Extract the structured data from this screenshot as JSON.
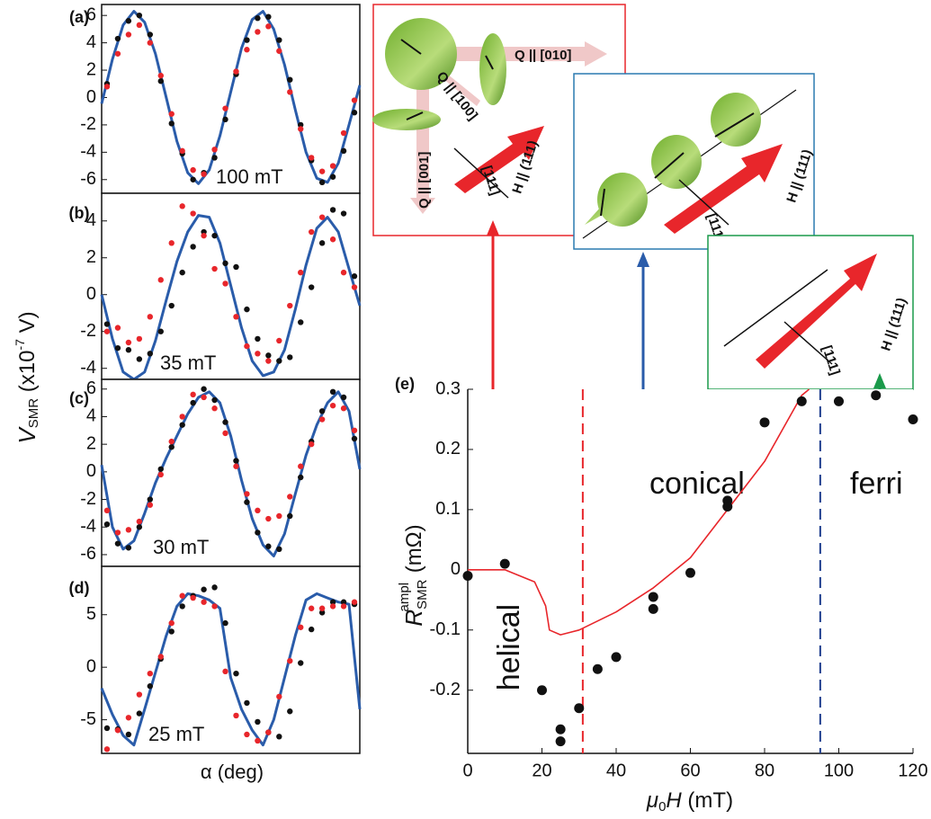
{
  "panels_abcd": {
    "y_label": [
      "V",
      "SMR",
      " (x10",
      "-7",
      " V)"
    ],
    "x_label": "α (deg)"
  },
  "panel_e_labels": {
    "y_label": [
      "R",
      "SMR",
      "ampl",
      " (mΩ)"
    ],
    "x_label": [
      "μ",
      "0",
      "H",
      " (mT)"
    ]
  },
  "insets": [
    {
      "texts": [
        "Q || [010]",
        "Q || [100]",
        "Q || [001]",
        "H || (111)",
        "[111]"
      ]
    },
    {
      "texts": [
        "H || (111)",
        "[111]"
      ]
    },
    {
      "texts": [
        "H || (111)",
        "[111]"
      ]
    }
  ],
  "chart_data": [
    {
      "type": "line",
      "label": "(a)",
      "annotation": "100 mT",
      "xlim": [
        0,
        360
      ],
      "ylim": [
        -7,
        6.8
      ],
      "yticks": [
        -6,
        -4,
        -2,
        0,
        2,
        4,
        6
      ],
      "series": [
        {
          "style": "line",
          "color": "#2a5caa",
          "x": [
            0,
            15,
            30,
            45,
            60,
            75,
            90,
            105,
            120,
            135,
            150,
            165,
            180,
            195,
            210,
            225,
            240,
            255,
            270,
            285,
            300,
            315,
            330,
            345,
            360
          ],
          "values": [
            -0.45,
            2.8,
            5.3,
            6.3,
            5.5,
            3.2,
            0,
            -3.2,
            -5.5,
            -6.3,
            -5.3,
            -2.8,
            0.4,
            3.6,
            5.7,
            6.3,
            5.0,
            2.4,
            -0.9,
            -4.0,
            -5.9,
            -6.2,
            -4.8,
            -2.0,
            0.9
          ]
        },
        {
          "style": "dots",
          "color": "#111111",
          "x": [
            7.5,
            22.5,
            37.5,
            52.5,
            67.5,
            82.5,
            97.5,
            112.5,
            127.5,
            142.5,
            157.5,
            172.5,
            187.5,
            202.5,
            217.5,
            232.5,
            247.5,
            262.5,
            277.5,
            292.5,
            307.5,
            322.5,
            337.5,
            352.5
          ],
          "values": [
            1.0,
            4.3,
            5.6,
            6.0,
            4.6,
            1.2,
            -1.9,
            -4.1,
            -6.0,
            -5.5,
            -4.4,
            -1.6,
            1.7,
            4.2,
            5.8,
            5.9,
            4.2,
            1.3,
            -2.0,
            -4.6,
            -6.2,
            -5.8,
            -3.9,
            -1.1
          ]
        },
        {
          "style": "dots",
          "color": "#e8262b",
          "x": [
            7.5,
            22.5,
            37.5,
            52.5,
            67.5,
            82.5,
            97.5,
            112.5,
            127.5,
            142.5,
            157.5,
            172.5,
            187.5,
            202.5,
            217.5,
            232.5,
            247.5,
            262.5,
            277.5,
            292.5,
            307.5,
            322.5,
            337.5,
            352.5
          ],
          "values": [
            0.8,
            3.2,
            4.6,
            5.3,
            4.0,
            1.6,
            -1.2,
            -3.9,
            -5.3,
            -5.6,
            -3.8,
            -0.8,
            1.9,
            3.5,
            4.8,
            5.2,
            3.4,
            0.4,
            -2.3,
            -4.4,
            -5.4,
            -5.0,
            -2.6,
            -0.2
          ]
        }
      ]
    },
    {
      "type": "line",
      "label": "(b)",
      "annotation": "35 mT",
      "xlim": [
        0,
        360
      ],
      "ylim": [
        -4.6,
        5.5
      ],
      "yticks": [
        -4,
        -2,
        0,
        2,
        4
      ],
      "series": [
        {
          "style": "line",
          "color": "#2a5caa",
          "x": [
            0,
            15,
            30,
            45,
            60,
            75,
            90,
            105,
            120,
            135,
            150,
            165,
            180,
            195,
            210,
            225,
            240,
            255,
            270,
            285,
            300,
            315,
            330,
            345,
            360
          ],
          "values": [
            0,
            -2.4,
            -4.2,
            -4.6,
            -4.2,
            -2.5,
            -0.3,
            1.8,
            3.4,
            4.3,
            4.2,
            2.8,
            0.5,
            -1.8,
            -3.6,
            -4.4,
            -4.2,
            -3.0,
            -0.8,
            1.6,
            3.6,
            4.2,
            3.4,
            1.4,
            -0.6
          ]
        },
        {
          "style": "dots",
          "color": "#111111",
          "x": [
            7.5,
            22.5,
            37.5,
            52.5,
            67.5,
            82.5,
            97.5,
            112.5,
            127.5,
            142.5,
            157.5,
            172.5,
            187.5,
            202.5,
            217.5,
            232.5,
            247.5,
            262.5,
            277.5,
            292.5,
            307.5,
            322.5,
            337.5,
            352.5
          ],
          "values": [
            -1.6,
            -2.9,
            -3.0,
            -3.5,
            -3.2,
            -2.0,
            -0.6,
            1.2,
            2.6,
            3.4,
            3.2,
            1.7,
            1.5,
            -0.8,
            -2.4,
            -3.3,
            -3.6,
            -3.4,
            -1.5,
            0.4,
            2.8,
            4.6,
            4.4,
            1.0
          ]
        },
        {
          "style": "dots",
          "color": "#e8262b",
          "x": [
            7.5,
            22.5,
            37.5,
            52.5,
            67.5,
            82.5,
            97.5,
            112.5,
            127.5,
            142.5,
            157.5,
            172.5,
            187.5,
            202.5,
            217.5,
            232.5,
            247.5,
            262.5,
            277.5,
            292.5,
            307.5,
            322.5,
            337.5,
            352.5
          ],
          "values": [
            -2.0,
            -1.8,
            -2.6,
            -2.4,
            -1.2,
            0.8,
            2.8,
            4.8,
            4.4,
            3.2,
            1.4,
            0.6,
            -1.2,
            -2.8,
            -3.2,
            -3.6,
            -2.5,
            -0.6,
            1.2,
            3.4,
            4.2,
            3.0,
            1.2,
            0.4
          ]
        }
      ]
    },
    {
      "type": "line",
      "label": "(c)",
      "annotation": "30 mT",
      "xlim": [
        0,
        360
      ],
      "ylim": [
        -6.85,
        6.7
      ],
      "yticks": [
        -6,
        -4,
        -2,
        0,
        2,
        4,
        6
      ],
      "series": [
        {
          "style": "line",
          "color": "#2a5caa",
          "x": [
            0,
            15,
            30,
            45,
            60,
            75,
            90,
            105,
            120,
            135,
            150,
            165,
            180,
            195,
            210,
            225,
            240,
            255,
            270,
            285,
            300,
            315,
            330,
            345,
            360
          ],
          "values": [
            0.5,
            -4.0,
            -5.6,
            -5.0,
            -3.0,
            -0.8,
            1.0,
            2.6,
            4.2,
            5.4,
            5.8,
            5.0,
            2.6,
            -0.6,
            -3.4,
            -5.3,
            -6.1,
            -4.5,
            -1.6,
            1.2,
            3.4,
            5.0,
            5.8,
            4.4,
            0.2
          ]
        },
        {
          "style": "dots",
          "color": "#111111",
          "x": [
            7.5,
            22.5,
            37.5,
            52.5,
            67.5,
            82.5,
            97.5,
            112.5,
            127.5,
            142.5,
            157.5,
            172.5,
            187.5,
            202.5,
            217.5,
            232.5,
            247.5,
            262.5,
            277.5,
            292.5,
            307.5,
            322.5,
            337.5,
            352.5
          ],
          "values": [
            -3.8,
            -5.2,
            -5.5,
            -4.0,
            -2.0,
            0.2,
            1.8,
            3.4,
            5.0,
            6.0,
            5.2,
            3.6,
            0.8,
            -2.2,
            -4.4,
            -5.4,
            -5.6,
            -3.2,
            -0.4,
            2.2,
            4.4,
            5.8,
            5.4,
            2.4
          ]
        },
        {
          "style": "dots",
          "color": "#e8262b",
          "x": [
            7.5,
            22.5,
            37.5,
            52.5,
            67.5,
            82.5,
            97.5,
            112.5,
            127.5,
            142.5,
            157.5,
            172.5,
            187.5,
            202.5,
            217.5,
            232.5,
            247.5,
            262.5,
            277.5,
            292.5,
            307.5,
            322.5,
            337.5,
            352.5
          ],
          "values": [
            -2.8,
            -4.4,
            -4.2,
            -3.6,
            -2.4,
            -0.2,
            2.2,
            4.0,
            5.6,
            5.4,
            4.6,
            2.8,
            0.4,
            -1.6,
            -2.8,
            -3.4,
            -3.2,
            -1.8,
            0.4,
            2.0,
            3.8,
            4.8,
            4.6,
            3.0
          ]
        }
      ]
    },
    {
      "type": "line",
      "label": "(d)",
      "annotation": "25 mT",
      "xlim": [
        0,
        360
      ],
      "ylim": [
        -8.2,
        9.6
      ],
      "yticks": [
        -5,
        0,
        5
      ],
      "series": [
        {
          "style": "line",
          "color": "#2a5caa",
          "x": [
            0,
            15,
            30,
            45,
            60,
            75,
            90,
            105,
            120,
            135,
            150,
            165,
            180,
            195,
            210,
            225,
            240,
            255,
            270,
            285,
            300,
            315,
            330,
            345,
            360
          ],
          "values": [
            -2.0,
            -4.5,
            -6.5,
            -7.4,
            -4.0,
            -0.5,
            3.0,
            5.8,
            7.0,
            6.8,
            6.4,
            5.6,
            -1.0,
            -4.0,
            -6.0,
            -7.4,
            -5.0,
            -1.0,
            3.0,
            6.4,
            7.0,
            6.6,
            6.2,
            6.0,
            -4.0
          ]
        },
        {
          "style": "dots",
          "color": "#111111",
          "x": [
            7.5,
            22.5,
            37.5,
            52.5,
            67.5,
            82.5,
            97.5,
            112.5,
            127.5,
            142.5,
            157.5,
            172.5,
            187.5,
            202.5,
            217.5,
            232.5,
            247.5,
            262.5,
            277.5,
            292.5,
            307.5,
            322.5,
            337.5,
            352.5
          ],
          "values": [
            -5.8,
            -5.9,
            -6.4,
            -4.4,
            -1.8,
            0.8,
            3.4,
            5.8,
            6.8,
            7.4,
            7.6,
            4.2,
            -0.6,
            -3.4,
            -5.2,
            -6.2,
            -6.6,
            -4.2,
            0.4,
            3.6,
            5.2,
            6.2,
            6.2,
            6.0
          ]
        },
        {
          "style": "dots",
          "color": "#e8262b",
          "x": [
            7.5,
            22.5,
            37.5,
            52.5,
            67.5,
            82.5,
            97.5,
            112.5,
            127.5,
            142.5,
            157.5,
            172.5,
            187.5,
            202.5,
            217.5,
            232.5,
            247.5,
            262.5,
            277.5,
            292.5,
            307.5,
            322.5,
            337.5,
            352.5
          ],
          "values": [
            -7.8,
            -6.0,
            -4.8,
            -2.6,
            -0.6,
            1.0,
            4.2,
            6.8,
            6.6,
            6.2,
            5.8,
            -0.4,
            -4.6,
            -6.4,
            -7.0,
            -6.2,
            -2.8,
            0.6,
            3.8,
            5.6,
            5.6,
            5.8,
            5.8,
            6.2
          ]
        }
      ]
    },
    {
      "type": "scatter",
      "label": "(e)",
      "xlim": [
        0,
        120
      ],
      "ylim": [
        -0.305,
        0.3
      ],
      "xticks": [
        0,
        20,
        40,
        60,
        80,
        100,
        120
      ],
      "yticks": [
        -0.2,
        -0.1,
        0,
        0.1,
        0.2,
        0.3
      ],
      "series": [
        {
          "style": "line",
          "color": "#e8262b",
          "x": [
            0,
            10,
            18,
            21,
            22,
            25,
            30,
            40,
            50,
            60,
            70,
            80,
            90,
            92
          ],
          "values": [
            0,
            0,
            -0.02,
            -0.06,
            -0.1,
            -0.108,
            -0.1,
            -0.07,
            -0.03,
            0.02,
            0.1,
            0.18,
            0.29,
            0.3
          ]
        },
        {
          "style": "dots",
          "color": "#111111",
          "x": [
            0,
            10,
            20,
            25,
            25,
            30,
            35,
            40,
            50,
            50,
            60,
            70,
            70,
            80,
            90,
            100,
            110,
            120
          ],
          "values": [
            -0.01,
            0.01,
            -0.2,
            -0.265,
            -0.285,
            -0.23,
            -0.165,
            -0.145,
            -0.045,
            -0.065,
            -0.005,
            0.115,
            0.105,
            0.245,
            0.28,
            0.28,
            0.29,
            0.25
          ]
        }
      ],
      "vlines": [
        {
          "x": 31,
          "color": "#e8262b"
        },
        {
          "x": 95,
          "color": "#1f3f8f"
        }
      ],
      "annotations": [
        {
          "text": "helical",
          "color": "#e8262b"
        },
        {
          "text": "conical",
          "color": "#2a5caa"
        },
        {
          "text": "ferri",
          "color": "#1a9a4a"
        }
      ]
    }
  ]
}
